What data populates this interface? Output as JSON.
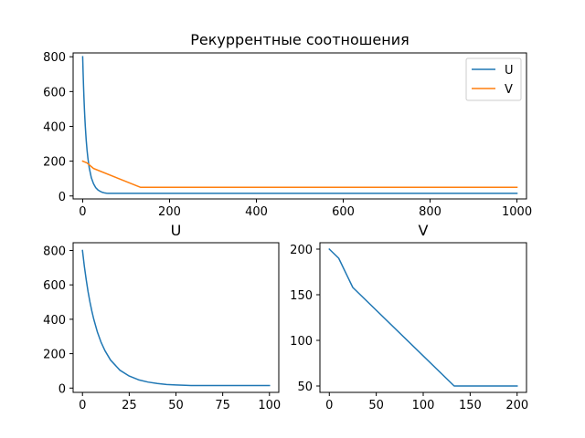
{
  "chart_data": [
    {
      "type": "line",
      "title": "Рекуррентные соотношения",
      "xlim": [
        -22,
        1022
      ],
      "ylim": [
        -17,
        822
      ],
      "x_ticks": [
        0,
        200,
        400,
        600,
        800,
        1000
      ],
      "y_ticks": [
        0,
        200,
        400,
        600,
        800
      ],
      "legend": "top-right",
      "series": [
        {
          "name": "U",
          "color": "#1f77b4",
          "x": [
            0,
            1,
            2,
            3,
            4,
            5,
            6,
            8,
            10,
            12,
            15,
            20,
            25,
            30,
            35,
            40,
            45,
            50,
            55,
            58,
            60,
            80,
            100,
            200,
            300,
            400,
            500,
            600,
            700,
            800,
            900,
            1000
          ],
          "y": [
            800,
            708,
            630,
            560,
            500,
            448,
            402,
            325,
            265,
            218,
            163,
            104,
            70,
            48,
            35,
            27,
            21,
            18,
            16,
            15,
            15,
            15,
            15,
            15,
            15,
            15,
            15,
            15,
            15,
            15,
            15,
            15
          ]
        },
        {
          "name": "V",
          "color": "#ff7f0e",
          "x": [
            0,
            10,
            25,
            132,
            133,
            200,
            400,
            600,
            800,
            1000
          ],
          "y": [
            200,
            190,
            158,
            51,
            50,
            50,
            50,
            50,
            50,
            50
          ]
        }
      ]
    },
    {
      "type": "line",
      "title": "U",
      "xlim": [
        -5,
        105
      ],
      "ylim": [
        -25,
        845
      ],
      "x_ticks": [
        0,
        25,
        50,
        75,
        100
      ],
      "y_ticks": [
        0,
        200,
        400,
        600,
        800
      ],
      "series": [
        {
          "color": "#1f77b4",
          "x": [
            0,
            1,
            2,
            3,
            4,
            5,
            6,
            8,
            10,
            12,
            15,
            20,
            25,
            30,
            35,
            40,
            45,
            50,
            55,
            58,
            60,
            70,
            80,
            90,
            100
          ],
          "y": [
            800,
            708,
            630,
            560,
            500,
            448,
            402,
            325,
            265,
            218,
            163,
            104,
            70,
            48,
            35,
            27,
            21,
            18,
            16,
            15,
            15,
            15,
            15,
            15,
            15
          ]
        }
      ]
    },
    {
      "type": "line",
      "title": "V",
      "xlim": [
        -10,
        210
      ],
      "ylim": [
        43,
        207
      ],
      "x_ticks": [
        0,
        50,
        100,
        150,
        200
      ],
      "y_ticks": [
        50,
        100,
        150,
        200
      ],
      "series": [
        {
          "color": "#1f77b4",
          "x": [
            0,
            10,
            25,
            132,
            133,
            150,
            200
          ],
          "y": [
            200,
            190,
            158,
            51,
            50,
            50,
            50
          ]
        }
      ]
    }
  ]
}
